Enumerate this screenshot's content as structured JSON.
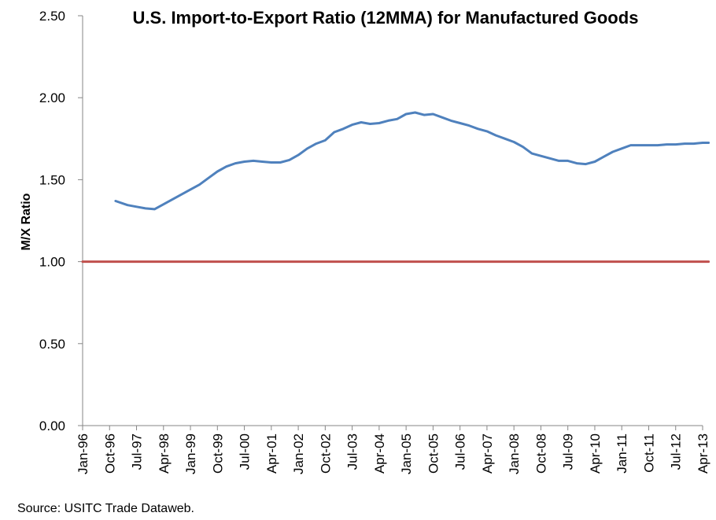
{
  "chart_data": {
    "type": "line",
    "title": "U.S. Import-to-Export Ratio (12MMA) for Manufactured Goods",
    "ylabel": "M/X Ratio",
    "xlabel": "",
    "ylim": [
      0,
      2.5
    ],
    "y_ticks": [
      "0.00",
      "0.50",
      "1.00",
      "1.50",
      "2.00",
      "2.50"
    ],
    "x_tick_labels": [
      "Jan-96",
      "Oct-96",
      "Jul-97",
      "Apr-98",
      "Jan-99",
      "Oct-99",
      "Jul-00",
      "Apr-01",
      "Jan-02",
      "Oct-02",
      "Jul-03",
      "Apr-04",
      "Jan-05",
      "Oct-05",
      "Jul-06",
      "Apr-07",
      "Jan-08",
      "Oct-08",
      "Jul-09",
      "Apr-10",
      "Jan-11",
      "Oct-11",
      "Jul-12",
      "Apr-13"
    ],
    "grid": false,
    "legend": "none",
    "series": [
      {
        "color": "#4F81BD",
        "points": [
          [
            "Dec-96",
            1.37
          ],
          [
            "Apr-97",
            1.345
          ],
          [
            "Jul-97",
            1.335
          ],
          [
            "Oct-97",
            1.325
          ],
          [
            "Jan-98",
            1.32
          ],
          [
            "Apr-98",
            1.35
          ],
          [
            "Jul-98",
            1.38
          ],
          [
            "Oct-98",
            1.41
          ],
          [
            "Jan-99",
            1.44
          ],
          [
            "Apr-99",
            1.47
          ],
          [
            "Jul-99",
            1.51
          ],
          [
            "Oct-99",
            1.55
          ],
          [
            "Jan-00",
            1.58
          ],
          [
            "Apr-00",
            1.6
          ],
          [
            "Jul-00",
            1.61
          ],
          [
            "Oct-00",
            1.615
          ],
          [
            "Jan-01",
            1.61
          ],
          [
            "Apr-01",
            1.605
          ],
          [
            "Jul-01",
            1.605
          ],
          [
            "Oct-01",
            1.62
          ],
          [
            "Jan-02",
            1.65
          ],
          [
            "Apr-02",
            1.69
          ],
          [
            "Jul-02",
            1.72
          ],
          [
            "Oct-02",
            1.74
          ],
          [
            "Jan-03",
            1.79
          ],
          [
            "Apr-03",
            1.81
          ],
          [
            "Jul-03",
            1.835
          ],
          [
            "Oct-03",
            1.85
          ],
          [
            "Jan-04",
            1.84
          ],
          [
            "Apr-04",
            1.845
          ],
          [
            "Jul-04",
            1.86
          ],
          [
            "Oct-04",
            1.87
          ],
          [
            "Jan-05",
            1.9
          ],
          [
            "Apr-05",
            1.91
          ],
          [
            "Jul-05",
            1.895
          ],
          [
            "Oct-05",
            1.9
          ],
          [
            "Jan-06",
            1.88
          ],
          [
            "Apr-06",
            1.86
          ],
          [
            "Jul-06",
            1.845
          ],
          [
            "Oct-06",
            1.83
          ],
          [
            "Jan-07",
            1.81
          ],
          [
            "Apr-07",
            1.795
          ],
          [
            "Jul-07",
            1.77
          ],
          [
            "Oct-07",
            1.75
          ],
          [
            "Jan-08",
            1.73
          ],
          [
            "Apr-08",
            1.7
          ],
          [
            "Jul-08",
            1.66
          ],
          [
            "Oct-08",
            1.645
          ],
          [
            "Jan-09",
            1.63
          ],
          [
            "Apr-09",
            1.615
          ],
          [
            "Jul-09",
            1.615
          ],
          [
            "Oct-09",
            1.6
          ],
          [
            "Jan-10",
            1.595
          ],
          [
            "Apr-10",
            1.61
          ],
          [
            "Jul-10",
            1.64
          ],
          [
            "Oct-10",
            1.67
          ],
          [
            "Jan-11",
            1.69
          ],
          [
            "Apr-11",
            1.71
          ],
          [
            "Jul-11",
            1.71
          ],
          [
            "Oct-11",
            1.71
          ],
          [
            "Jan-12",
            1.71
          ],
          [
            "Apr-12",
            1.715
          ],
          [
            "Jul-12",
            1.715
          ],
          [
            "Oct-12",
            1.72
          ],
          [
            "Jan-13",
            1.72
          ],
          [
            "Apr-13",
            1.725
          ],
          [
            "Jun-13",
            1.725
          ]
        ]
      },
      {
        "color": "#C0504D",
        "points": [
          [
            "Jan-96",
            1.0
          ],
          [
            "Jun-13",
            1.0
          ]
        ]
      }
    ]
  },
  "source_note": "Source: USITC Trade Dataweb."
}
